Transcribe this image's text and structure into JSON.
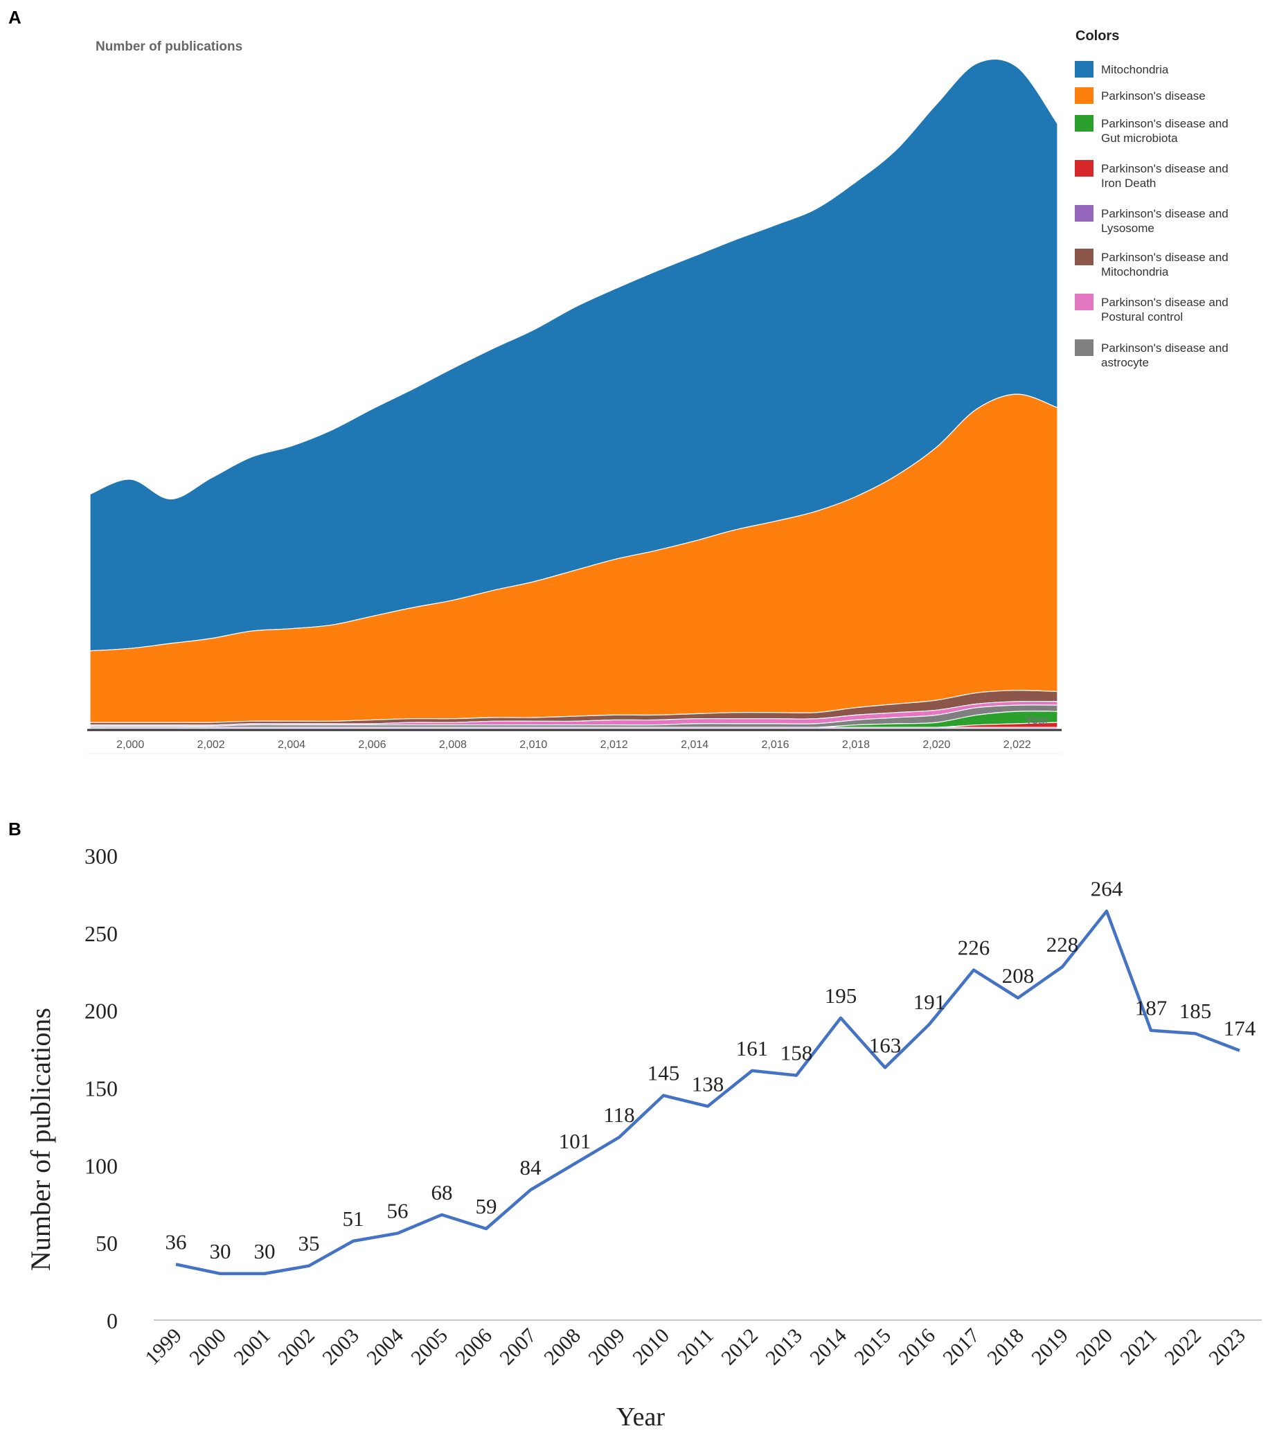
{
  "panel_a_label": "A",
  "panel_b_label": "B",
  "chart_data": [
    {
      "type": "area",
      "stacked": true,
      "ylabel": "Number of publications",
      "x_tick_labels": [
        "2,000",
        "2,002",
        "2,004",
        "2,006",
        "2,008",
        "2,010",
        "2,012",
        "2,014",
        "2,016",
        "2,018",
        "2,020",
        "2,022"
      ],
      "x_hidden_label": "Year",
      "xlim": [
        1999,
        2023
      ],
      "legend_title": "Colors",
      "legend_position": "right",
      "x": [
        1999,
        2000,
        2001,
        2002,
        2003,
        2004,
        2005,
        2006,
        2007,
        2008,
        2009,
        2010,
        2011,
        2012,
        2013,
        2014,
        2015,
        2016,
        2017,
        2018,
        2019,
        2020,
        2021,
        2022,
        2023
      ],
      "series": [
        {
          "name": "Parkinson's disease and Lysosome",
          "color": "#9467bd",
          "values": [
            1,
            1,
            1,
            1,
            1,
            1,
            1,
            1,
            1,
            1,
            1,
            1,
            1,
            1,
            1,
            1,
            1,
            1,
            1,
            1,
            1,
            1,
            1,
            1,
            1
          ]
        },
        {
          "name": "Parkinson's disease and Iron Death",
          "color": "#d62728",
          "values": [
            0,
            0,
            0,
            0,
            0,
            0,
            0,
            0,
            0,
            0,
            0,
            0,
            0,
            0,
            0,
            0,
            0,
            0,
            0,
            0,
            0,
            0,
            2,
            3,
            4
          ]
        },
        {
          "name": "Parkinson's disease and Gut microbiota",
          "color": "#2ca02c",
          "values": [
            0,
            0,
            0,
            0,
            0,
            0,
            0,
            0,
            0,
            0,
            0,
            0,
            0,
            0,
            0,
            0,
            0,
            0,
            0,
            2,
            3,
            4,
            8,
            10,
            9
          ]
        },
        {
          "name": "Parkinson's disease and astrocyte",
          "color": "#7f7f7f",
          "values": [
            1,
            1,
            1,
            1,
            2,
            2,
            2,
            2,
            2,
            2,
            2,
            2,
            2,
            2,
            2,
            3,
            3,
            3,
            3,
            4,
            5,
            6,
            6,
            5,
            5
          ]
        },
        {
          "name": "Parkinson's disease and Postural control",
          "color": "#e377c2",
          "values": [
            1,
            1,
            1,
            1,
            1,
            1,
            1,
            1,
            2,
            2,
            3,
            3,
            3,
            4,
            4,
            4,
            4,
            4,
            4,
            4,
            4,
            4,
            3,
            3,
            3
          ]
        },
        {
          "name": "Parkinson's disease and Mitochondria",
          "color": "#8c564b",
          "values": [
            2,
            2,
            2,
            2,
            2,
            2,
            2,
            3,
            3,
            3,
            3,
            3,
            4,
            4,
            4,
            4,
            5,
            5,
            5,
            6,
            7,
            8,
            9,
            9,
            8
          ]
        },
        {
          "name": "Parkinson's disease",
          "color": "#ff7f0e",
          "values": [
            58,
            60,
            64,
            68,
            73,
            75,
            78,
            84,
            90,
            96,
            103,
            110,
            118,
            126,
            133,
            140,
            148,
            155,
            163,
            171,
            185,
            205,
            230,
            240,
            230
          ]
        },
        {
          "name": "Mitochondria",
          "color": "#1f77b4",
          "values": [
            127,
            137,
            117,
            130,
            141,
            148,
            158,
            168,
            177,
            188,
            196,
            204,
            213,
            219,
            226,
            231,
            235,
            240,
            245,
            255,
            264,
            278,
            280,
            265,
            230
          ]
        }
      ],
      "legend_order": [
        {
          "name": "Mitochondria",
          "color": "#1f77b4"
        },
        {
          "name": "Parkinson's disease",
          "color": "#ff7f0e"
        },
        {
          "name": "Parkinson's disease and Gut microbiota",
          "color": "#2ca02c"
        },
        {
          "name": "Parkinson's disease and Iron Death",
          "color": "#d62728"
        },
        {
          "name": "Parkinson's disease and Lysosome",
          "color": "#9467bd"
        },
        {
          "name": "Parkinson's disease and Mitochondria",
          "color": "#8c564b"
        },
        {
          "name": "Parkinson's disease and Postural control",
          "color": "#e377c2"
        },
        {
          "name": "Parkinson's disease and astrocyte",
          "color": "#7f7f7f"
        }
      ]
    },
    {
      "type": "line",
      "xlabel": "Year",
      "ylabel": "Number of publications",
      "ylim": [
        0,
        300
      ],
      "yticks": [
        0,
        50,
        100,
        150,
        200,
        250,
        300
      ],
      "line_color": "#4472c4",
      "categories": [
        "1999",
        "2000",
        "2001",
        "2002",
        "2003",
        "2004",
        "2005",
        "2006",
        "2007",
        "2008",
        "2009",
        "2010",
        "2011",
        "2012",
        "2013",
        "2014",
        "2015",
        "2016",
        "2017",
        "2018",
        "2019",
        "2020",
        "2021",
        "2022",
        "2023"
      ],
      "values": [
        36,
        30,
        30,
        35,
        51,
        56,
        68,
        59,
        84,
        101,
        118,
        145,
        138,
        161,
        158,
        195,
        163,
        191,
        226,
        208,
        228,
        264,
        187,
        185,
        174
      ]
    }
  ]
}
